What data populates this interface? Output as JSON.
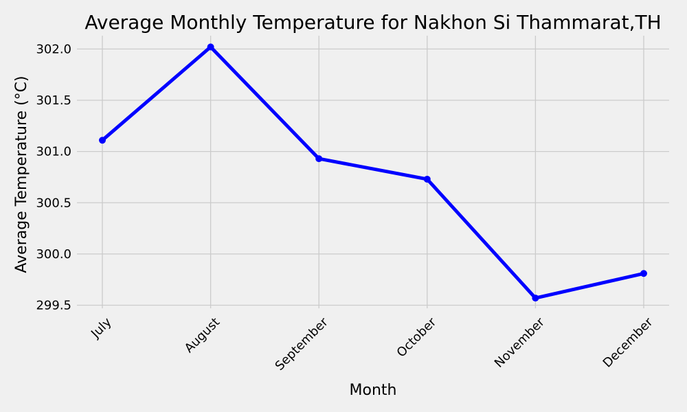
{
  "chart_data": {
    "type": "line",
    "title": "Average Monthly Temperature for Nakhon Si Thammarat,TH",
    "xlabel": "Month",
    "ylabel": "Average Temperature (°C)",
    "categories": [
      "July",
      "August",
      "September",
      "October",
      "November",
      "December"
    ],
    "series": [
      {
        "values": [
          301.11,
          302.02,
          300.93,
          300.73,
          299.57,
          299.81
        ],
        "color": "#0000ff",
        "marker": "circle"
      }
    ],
    "yticks": [
      "299.5",
      "300.0",
      "300.5",
      "301.0",
      "301.5",
      "302.0"
    ],
    "ylim": [
      299.47,
      302.13
    ],
    "grid": true,
    "background": "#f0f0f0",
    "grid_color": "#cbcbcb"
  }
}
